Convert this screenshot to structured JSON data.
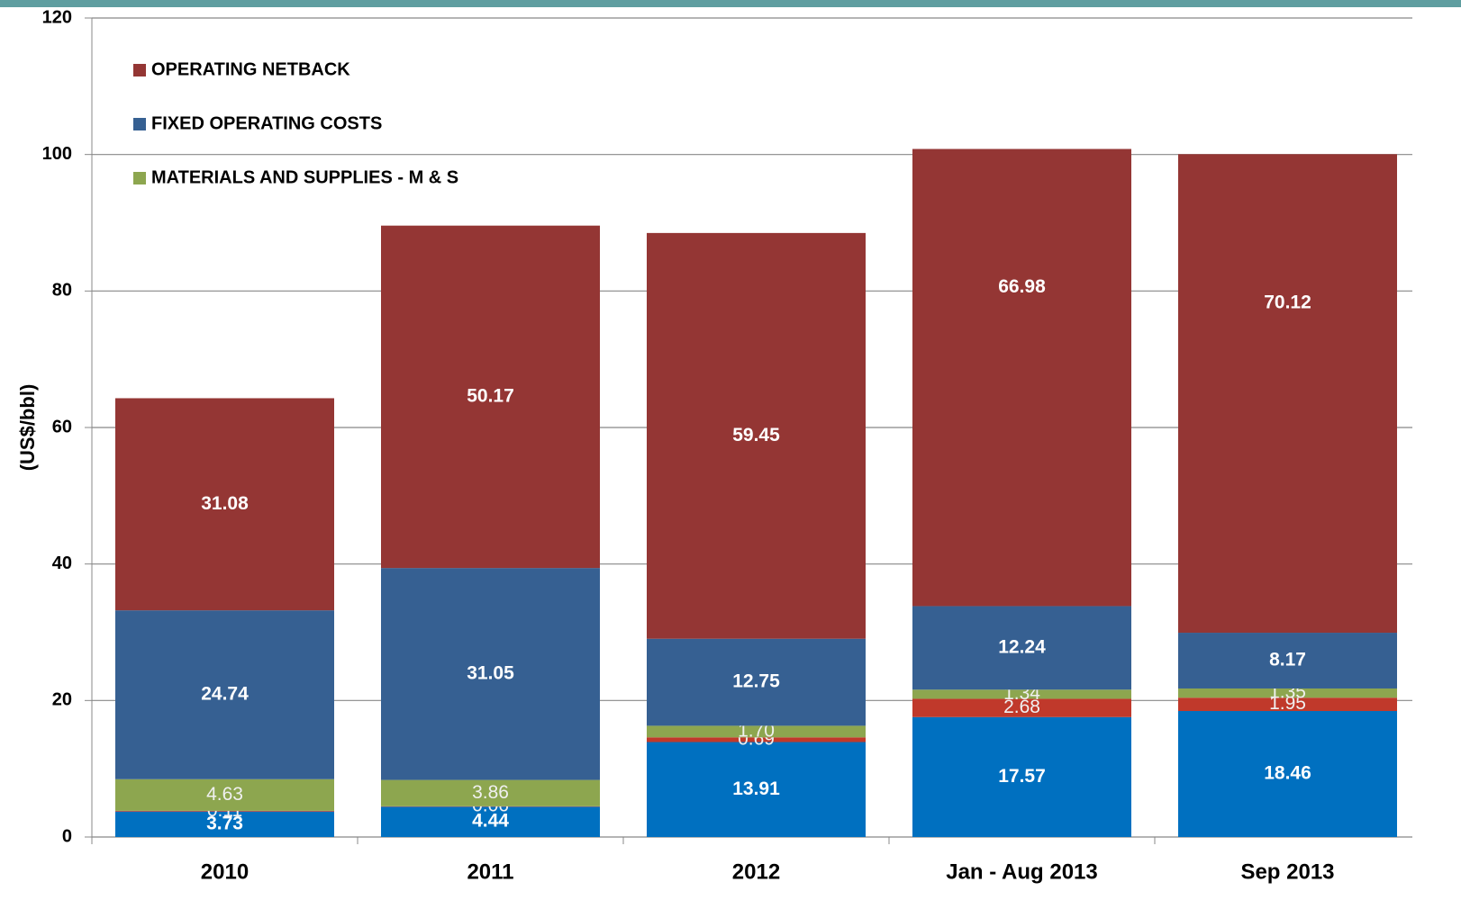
{
  "chart_data": {
    "type": "stacked_bar",
    "y_label": "(US$/bbl)",
    "categories": [
      "2010",
      "2011",
      "2012",
      "Jan - Aug 2013",
      "Sep 2013"
    ],
    "series": [
      {
        "color": "#0070c0",
        "values": [
          3.73,
          4.44,
          13.91,
          17.57,
          18.46
        ]
      },
      {
        "color": "#c0392b",
        "values": [
          0.11,
          0.06,
          0.69,
          2.68,
          1.95
        ]
      },
      {
        "name": "MATERIALS AND SUPPLIES - M & S",
        "color": "#8da64f",
        "values": [
          4.63,
          3.86,
          1.7,
          1.34,
          1.35
        ],
        "value_labels": [
          "4.63",
          "3.86",
          "1.70",
          "1.34",
          "1.35"
        ]
      },
      {
        "name": "FIXED OPERATING COSTS",
        "color": "#366092",
        "values": [
          24.74,
          31.05,
          12.75,
          12.24,
          8.17
        ]
      },
      {
        "name": "OPERATING NETBACK",
        "color": "#943634",
        "values": [
          31.08,
          50.17,
          59.45,
          66.98,
          70.12
        ]
      }
    ],
    "ylim": [
      0,
      120
    ],
    "yticks": [
      0,
      20,
      40,
      60,
      80,
      100,
      120
    ],
    "grid": true
  }
}
